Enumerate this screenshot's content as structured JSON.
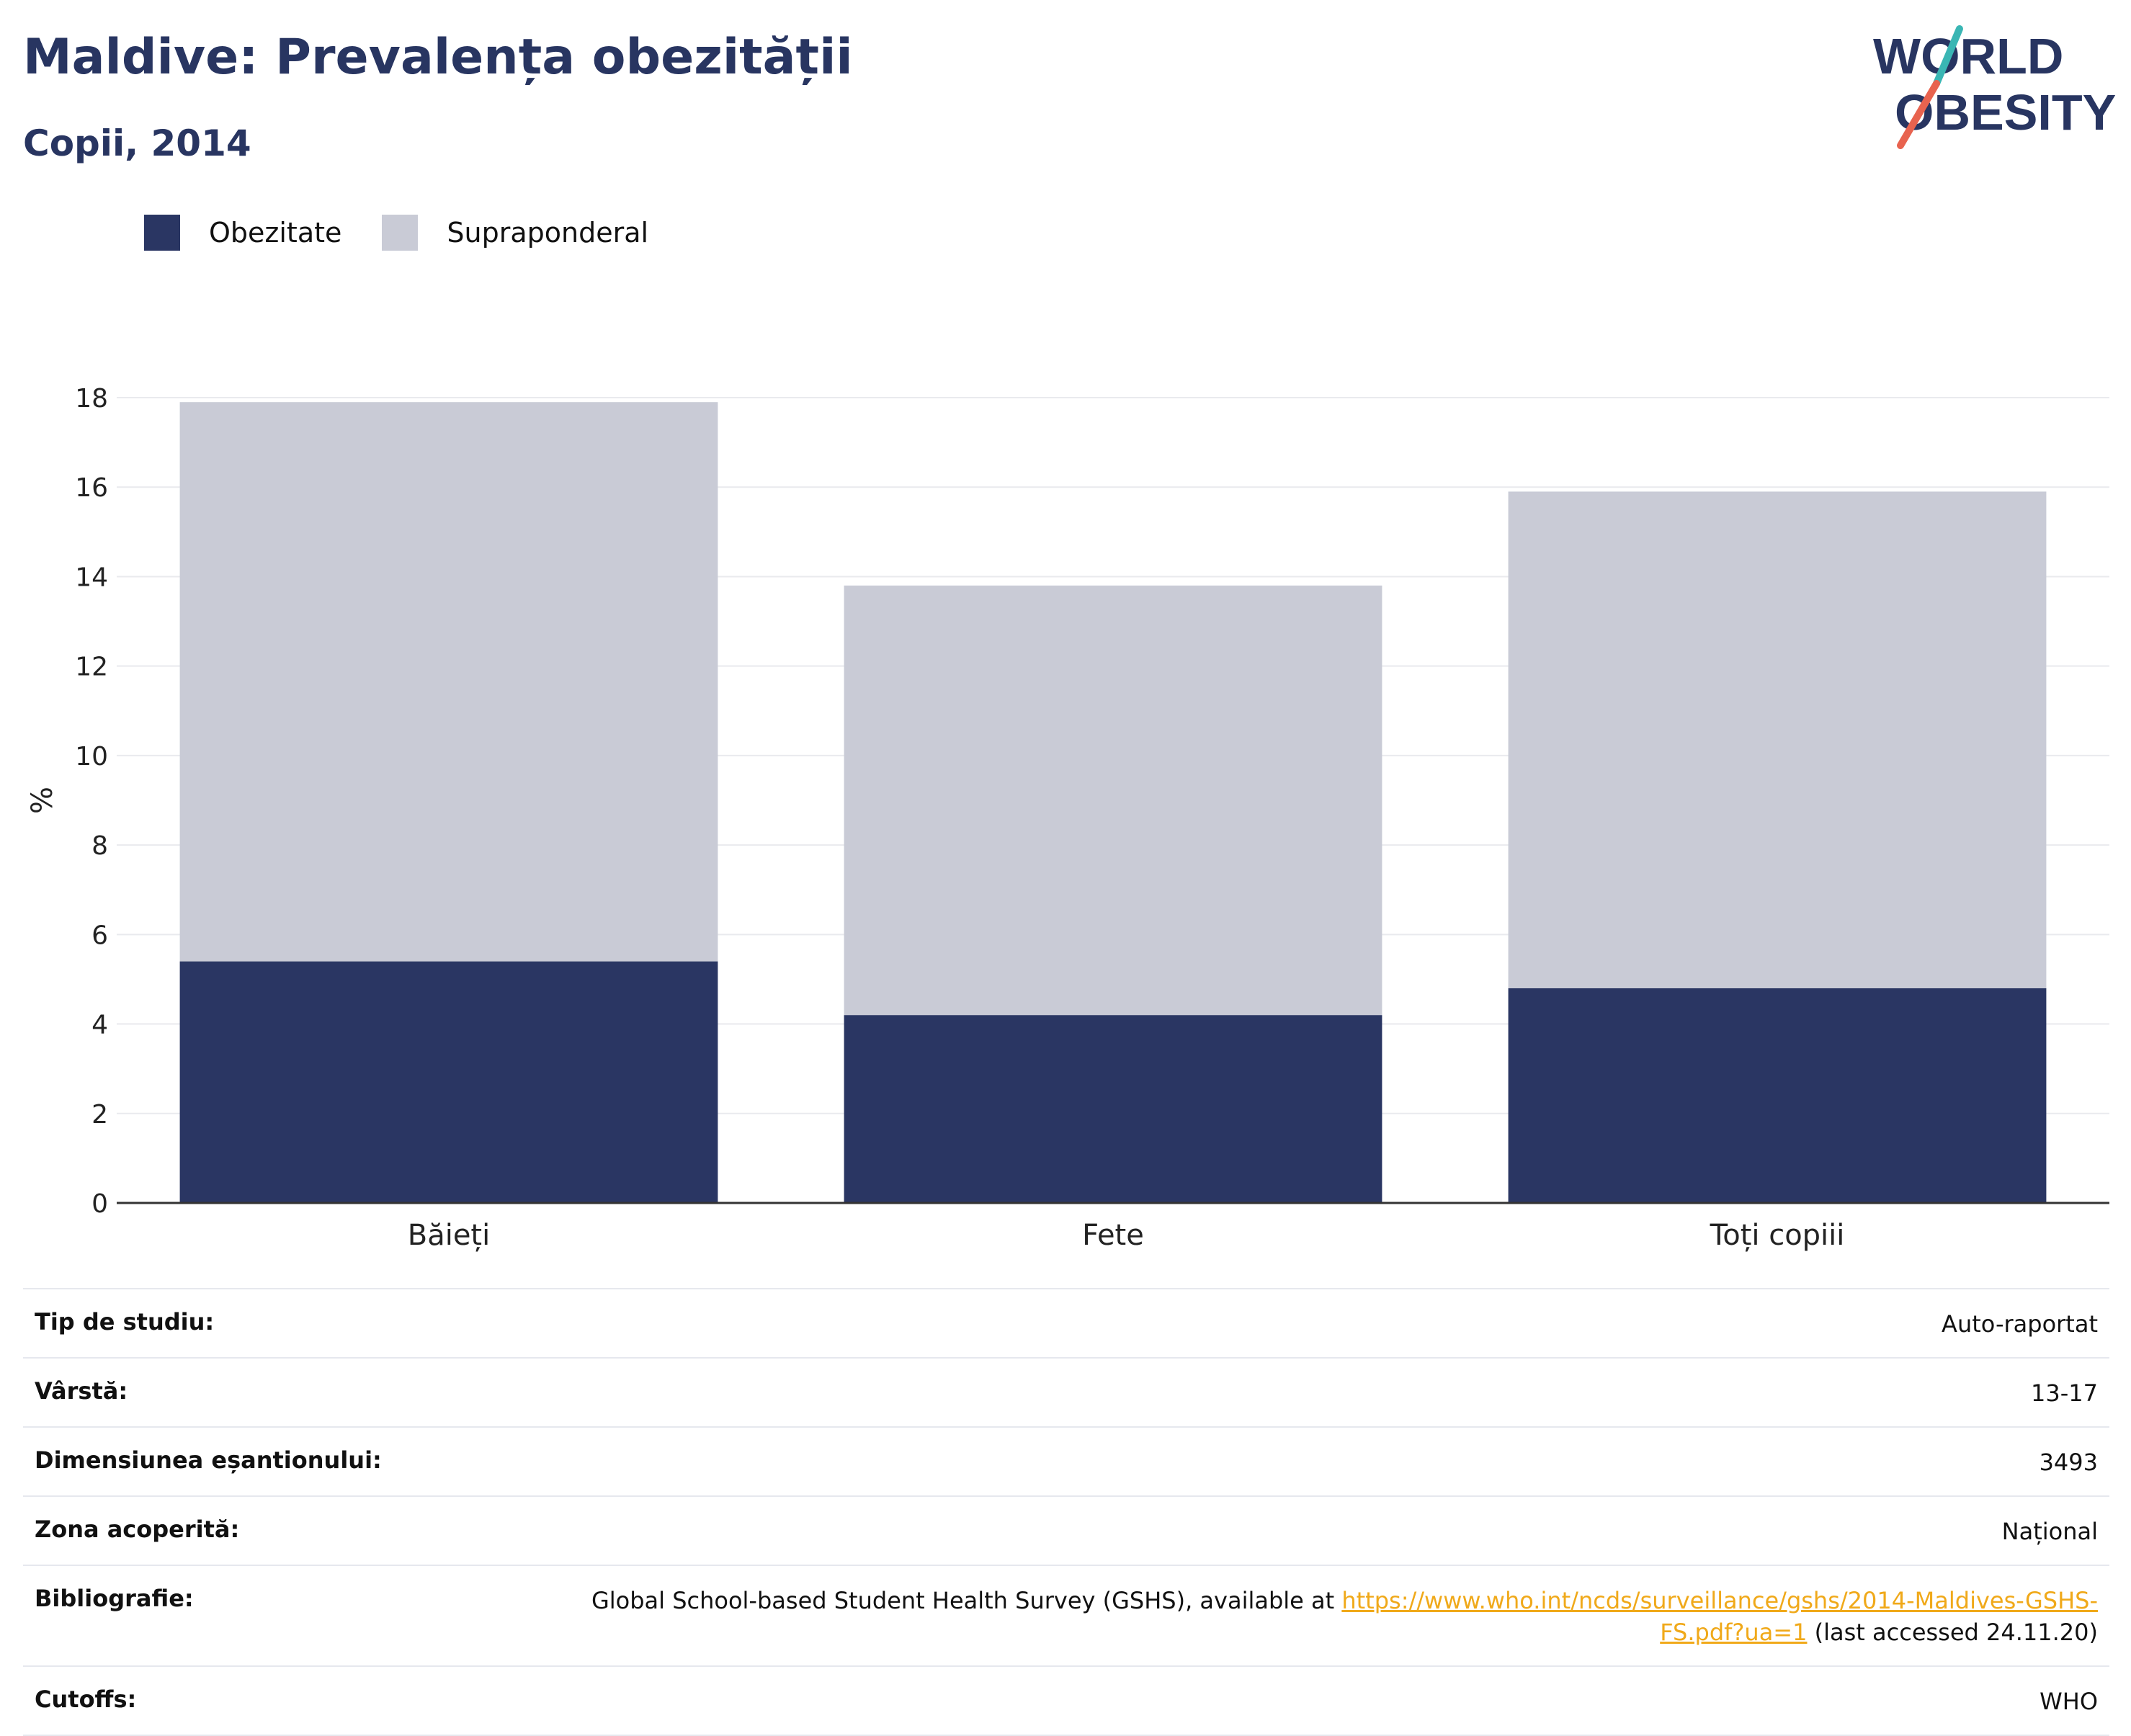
{
  "header": {
    "title": "Maldive: Prevalența obezității",
    "subtitle": "Copii, 2014",
    "logo_line1": "WORLD",
    "logo_line2": "OBESITY"
  },
  "colors": {
    "obesity": "#2a3663",
    "overweight": "#c9cbd6",
    "title": "#283561",
    "link": "#f0a91a",
    "logo_teal": "#3ab6b4",
    "logo_red": "#e8634f"
  },
  "chart_data": {
    "type": "bar",
    "stacked": true,
    "categories": [
      "Băieți",
      "Fete",
      "Toți copiii"
    ],
    "series": [
      {
        "name": "Obezitate",
        "values": [
          5.4,
          4.2,
          4.8
        ]
      },
      {
        "name": "Supraponderal",
        "values": [
          12.5,
          9.6,
          11.1
        ]
      }
    ],
    "ylabel": "%",
    "ylim": [
      0,
      18
    ],
    "yticks": [
      "0",
      "2",
      "4",
      "6",
      "8",
      "10",
      "12",
      "14",
      "16",
      "18"
    ],
    "grid": true,
    "legend_position": "top-left"
  },
  "info": {
    "rows": [
      {
        "label": "Tip de studiu:",
        "value": "Auto-raportat"
      },
      {
        "label": "Vârstă:",
        "value": "13-17"
      },
      {
        "label": "Dimensiunea eșantionului:",
        "value": "3493"
      },
      {
        "label": "Zona acoperită:",
        "value": "Național"
      }
    ],
    "bibliography": {
      "label": "Bibliografie:",
      "text_before": "Global School-based Student Health Survey (GSHS), available at ",
      "link": "https://www.who.int/ncds/surveillance/gshs/2014-Maldives-GSHS-FS.pdf?ua=1",
      "text_after": " (last accessed 24.11.20)"
    },
    "cutoffs": {
      "label": "Cutoffs:",
      "value": "WHO"
    }
  }
}
